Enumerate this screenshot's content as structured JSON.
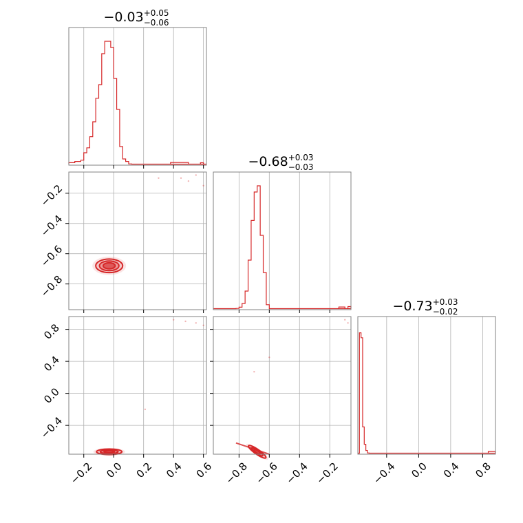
{
  "chart_data": {
    "type": "corner",
    "color": "#d62728",
    "grid": true,
    "parameters": [
      {
        "median": -0.03,
        "plus": 0.05,
        "minus": 0.06,
        "title": "−0.03",
        "title_plus": "+0.05",
        "title_minus": "−0.06",
        "range": [
          -0.3,
          0.62
        ]
      },
      {
        "median": -0.68,
        "plus": 0.03,
        "minus": 0.03,
        "title": "−0.68",
        "title_plus": "+0.03",
        "title_minus": "−0.03",
        "range": [
          -0.97,
          -0.06
        ]
      },
      {
        "median": -0.73,
        "plus": 0.03,
        "minus": 0.02,
        "title": "−0.73",
        "title_plus": "+0.03",
        "title_minus": "−0.02",
        "range": [
          -0.76,
          0.96
        ]
      }
    ],
    "ticks": {
      "p0": {
        "values": [
          -0.2,
          0.0,
          0.2,
          0.4,
          0.6
        ],
        "labels": [
          "−0.2",
          "0.0",
          "0.2",
          "0.4",
          "0.6"
        ]
      },
      "p1": {
        "values": [
          -0.8,
          -0.6,
          -0.4,
          -0.2
        ],
        "labels": [
          "−0.8",
          "−0.6",
          "−0.4",
          "−0.2"
        ]
      },
      "p2": {
        "values": [
          -0.4,
          0.0,
          0.4,
          0.8
        ],
        "labels": [
          "−0.4",
          "0.0",
          "0.4",
          "0.8"
        ]
      }
    },
    "histograms": [
      {
        "param": 0,
        "bin_edges": [
          -0.3,
          -0.28,
          -0.26,
          -0.24,
          -0.22,
          -0.2,
          -0.18,
          -0.16,
          -0.14,
          -0.12,
          -0.1,
          -0.08,
          -0.06,
          -0.04,
          -0.02,
          0.0,
          0.02,
          0.04,
          0.06,
          0.08,
          0.1,
          0.12
        ],
        "counts": [
          0.02,
          0.02,
          0.03,
          0.03,
          0.04,
          0.1,
          0.14,
          0.23,
          0.35,
          0.54,
          0.65,
          0.9,
          1.0,
          1.0,
          0.95,
          0.7,
          0.45,
          0.15,
          0.05,
          0.03,
          0.01
        ],
        "tail": [
          {
            "x0": 0.38,
            "x1": 0.5,
            "h": 0.012
          },
          {
            "x0": 0.58,
            "x1": 0.6,
            "h": 0.01
          }
        ]
      },
      {
        "param": 1,
        "bin_edges": [
          -0.82,
          -0.8,
          -0.78,
          -0.76,
          -0.74,
          -0.72,
          -0.7,
          -0.68,
          -0.66,
          -0.64,
          -0.62,
          -0.6
        ],
        "counts": [
          0.01,
          0.02,
          0.05,
          0.15,
          0.4,
          0.72,
          0.95,
          1.0,
          0.6,
          0.3,
          0.04
        ],
        "tail": [
          {
            "x0": -0.14,
            "x1": -0.1,
            "h": 0.012
          },
          {
            "x0": -0.08,
            "x1": -0.06,
            "h": 0.015
          }
        ]
      },
      {
        "param": 2,
        "bin_edges": [
          -0.76,
          -0.74,
          -0.72,
          -0.7,
          -0.68,
          -0.66,
          -0.64,
          -0.62
        ],
        "counts": [
          0.0,
          0.98,
          0.94,
          0.22,
          0.08,
          0.03,
          0.01
        ],
        "tail": [
          {
            "x0": 0.87,
            "x1": 0.96,
            "h": 0.012
          }
        ]
      }
    ],
    "panels_2d": [
      {
        "x_param": 0,
        "y_param": 1,
        "center": [
          -0.03,
          -0.68
        ],
        "level_sizes": [
          [
            0.04,
            0.02
          ],
          [
            0.065,
            0.032
          ],
          [
            0.09,
            0.045
          ]
        ],
        "stray_points": [
          [
            0.45,
            -0.1
          ],
          [
            0.5,
            -0.12
          ],
          [
            0.55,
            -0.08
          ],
          [
            0.6,
            -0.15
          ],
          [
            0.3,
            -0.1
          ]
        ]
      },
      {
        "x_param": 0,
        "y_param": 2,
        "center": [
          -0.03,
          -0.73
        ],
        "level_sizes": [
          [
            0.035,
            0.012
          ],
          [
            0.06,
            0.022
          ],
          [
            0.085,
            0.035
          ]
        ],
        "stray_points": [
          [
            0.4,
            0.92
          ],
          [
            0.48,
            0.9
          ],
          [
            0.55,
            0.88
          ],
          [
            0.6,
            0.85
          ],
          [
            0.21,
            -0.2
          ]
        ]
      },
      {
        "x_param": 1,
        "y_param": 2,
        "center": [
          -0.68,
          -0.73
        ],
        "level_sizes": [
          [
            0.025,
            0.012
          ],
          [
            0.045,
            0.02
          ],
          [
            0.07,
            0.03
          ]
        ],
        "stray_points": [
          [
            -0.1,
            0.92
          ],
          [
            -0.08,
            0.88
          ],
          [
            -0.6,
            0.45
          ],
          [
            -0.7,
            0.27
          ]
        ]
      }
    ]
  }
}
